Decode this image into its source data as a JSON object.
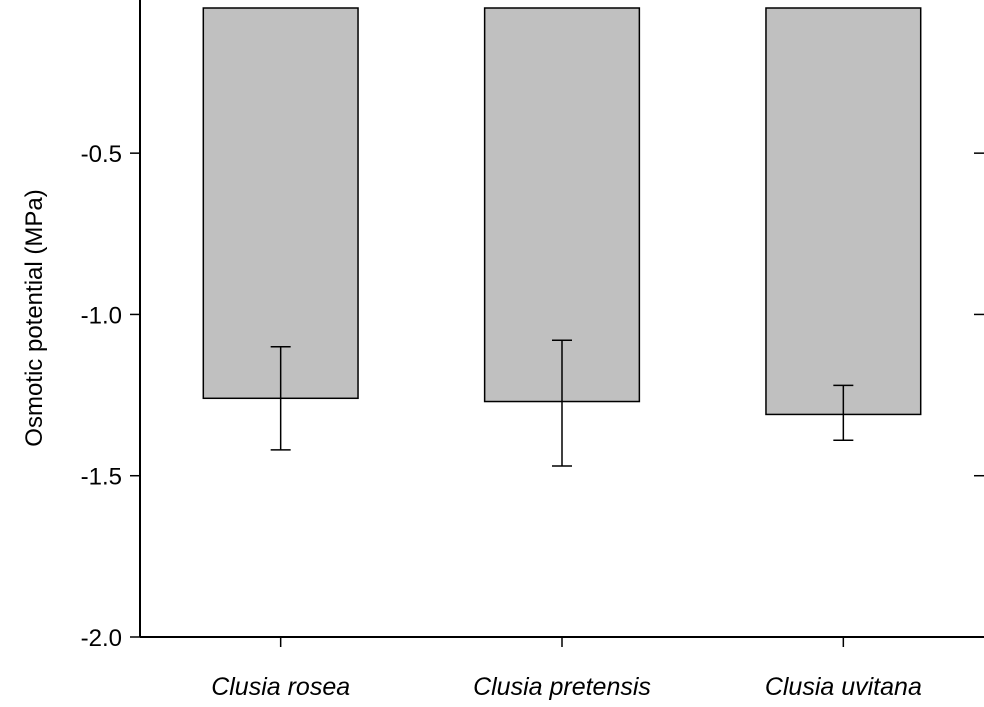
{
  "chart_data": {
    "type": "bar",
    "title": "",
    "xlabel": "",
    "ylabel": "Osmotic potential (MPa)",
    "categories": [
      "Clusia rosea",
      "Clusia pretensis",
      "Clusia uvitana"
    ],
    "values": [
      -1.26,
      -1.27,
      -1.31
    ],
    "error_low": [
      -1.42,
      -1.47,
      -1.39
    ],
    "error_high": [
      -1.1,
      -1.08,
      -1.22
    ],
    "ylim": [
      -2.0,
      -0.05
    ],
    "yticks": [
      -0.5,
      -1.0,
      -1.5,
      -2.0
    ],
    "ytick_labels": [
      "-0.5",
      "-1.0",
      "-1.5",
      "-2.0"
    ],
    "bar_color": "#c0c0c0",
    "grid": false,
    "legend": "none"
  }
}
